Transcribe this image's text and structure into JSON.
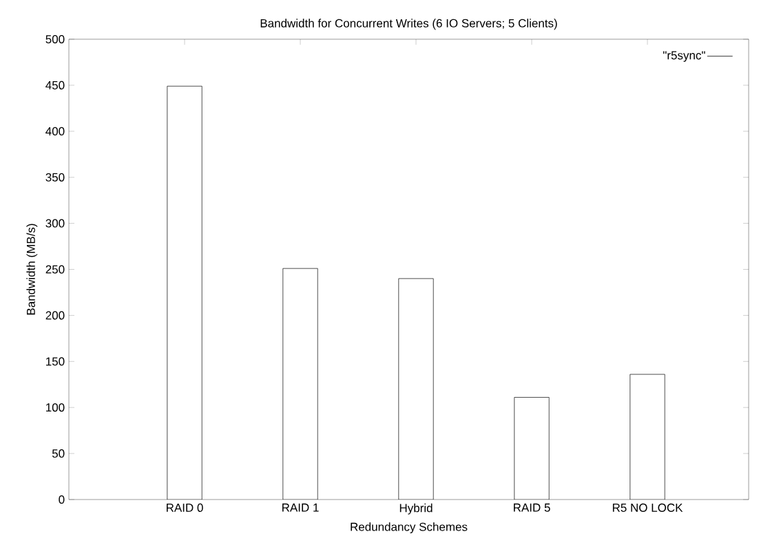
{
  "chart_data": {
    "type": "bar",
    "title": "Bandwidth for Concurrent Writes (6 IO Servers; 5 Clients)",
    "xlabel": "Redundancy Schemes",
    "ylabel": "Bandwidth (MB/s)",
    "categories": [
      "RAID 0",
      "RAID 1",
      "Hybrid",
      "RAID 5",
      "R5 NO LOCK"
    ],
    "series": [
      {
        "name": "\"r5sync\"",
        "color": "#ffffff",
        "values": [
          449,
          251,
          240,
          111,
          136
        ]
      }
    ],
    "ylim": [
      0,
      500
    ],
    "yticks": [
      0,
      50,
      100,
      150,
      200,
      250,
      300,
      350,
      400,
      450,
      500
    ],
    "legend": "top right"
  }
}
